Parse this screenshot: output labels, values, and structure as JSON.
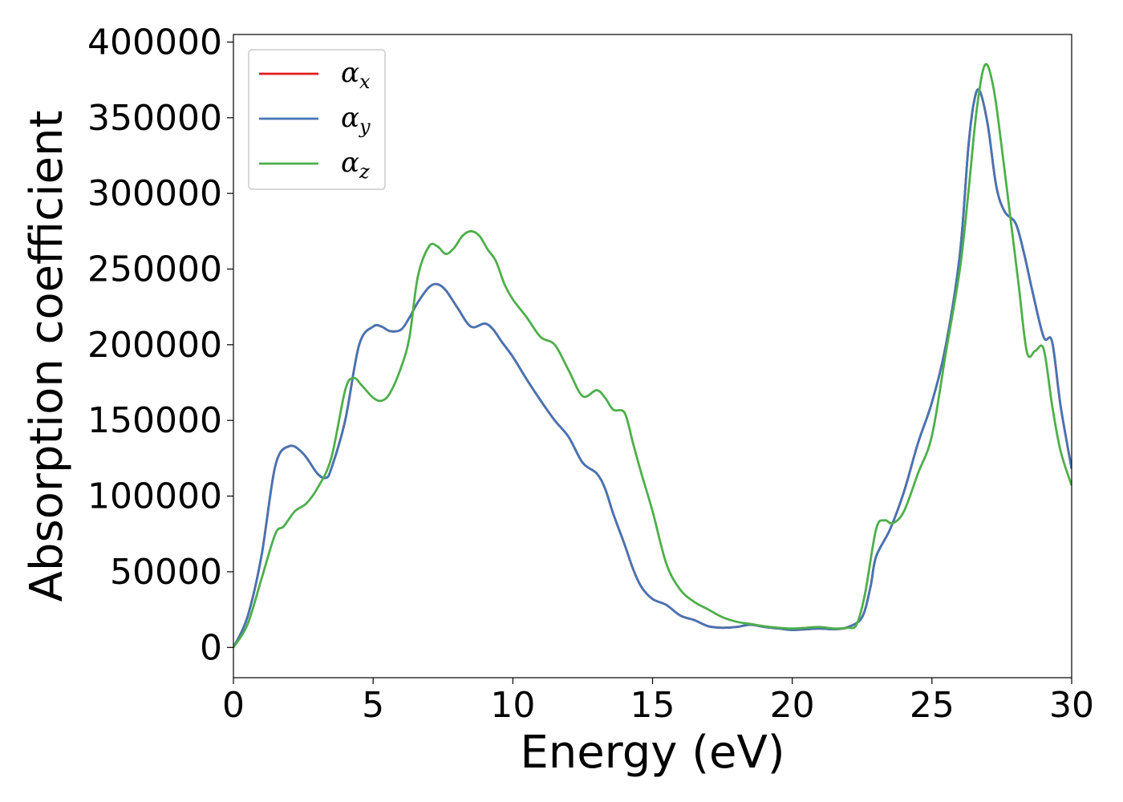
{
  "chart_data": {
    "type": "line",
    "title": "",
    "xlabel": "Energy (eV)",
    "ylabel": "Absorption coefficient",
    "xlim": [
      0,
      30
    ],
    "ylim": [
      -20000,
      405000
    ],
    "xticks": [
      0,
      5,
      10,
      15,
      20,
      25,
      30
    ],
    "yticks": [
      0,
      50000,
      100000,
      150000,
      200000,
      250000,
      300000,
      350000,
      400000
    ],
    "grid": false,
    "legend_position": "top-left",
    "series": [
      {
        "name": "α",
        "subscript": "x",
        "color": "#e41a1c",
        "x": [
          0,
          0.5,
          1,
          1.5,
          2,
          2.5,
          3,
          3.3,
          3.5,
          4,
          4.5,
          5,
          5.3,
          5.6,
          6,
          6.3,
          6.6,
          7,
          7.3,
          7.6,
          8,
          8.5,
          9,
          9.3,
          9.6,
          10,
          10.5,
          11,
          11.5,
          12,
          12.5,
          13,
          13.3,
          13.6,
          14,
          14.3,
          14.6,
          15,
          15.5,
          16,
          16.5,
          17,
          17.5,
          18,
          18.5,
          19,
          19.5,
          20,
          20.5,
          21,
          21.5,
          22,
          22.5,
          22.8,
          23,
          23.5,
          24,
          24.5,
          25,
          25.5,
          26,
          26.3,
          26.5,
          26.7,
          27,
          27.3,
          27.6,
          28,
          28.3,
          28.6,
          29,
          29.3,
          29.6,
          30
        ],
        "values": [
          0,
          20000,
          60000,
          120000,
          133000,
          128000,
          115000,
          112000,
          118000,
          150000,
          200000,
          212000,
          212000,
          209000,
          210000,
          218000,
          228000,
          238000,
          240000,
          236000,
          225000,
          212000,
          214000,
          210000,
          202000,
          192000,
          177000,
          163000,
          150000,
          139000,
          122000,
          115000,
          105000,
          88000,
          68000,
          52000,
          40000,
          32000,
          28000,
          21000,
          18000,
          14000,
          13000,
          13500,
          15000,
          13500,
          12500,
          11500,
          12000,
          12500,
          12000,
          13500,
          20000,
          40000,
          60000,
          78000,
          103000,
          135000,
          162000,
          200000,
          260000,
          330000,
          360000,
          368000,
          345000,
          305000,
          288000,
          280000,
          260000,
          235000,
          205000,
          202000,
          160000,
          118000
        ]
      },
      {
        "name": "α",
        "subscript": "y",
        "color": "#4575b4",
        "x": [
          0,
          0.5,
          1,
          1.5,
          2,
          2.5,
          3,
          3.3,
          3.5,
          4,
          4.5,
          5,
          5.3,
          5.6,
          6,
          6.3,
          6.6,
          7,
          7.3,
          7.6,
          8,
          8.5,
          9,
          9.3,
          9.6,
          10,
          10.5,
          11,
          11.5,
          12,
          12.5,
          13,
          13.3,
          13.6,
          14,
          14.3,
          14.6,
          15,
          15.5,
          16,
          16.5,
          17,
          17.5,
          18,
          18.5,
          19,
          19.5,
          20,
          20.5,
          21,
          21.5,
          22,
          22.5,
          22.8,
          23,
          23.5,
          24,
          24.5,
          25,
          25.5,
          26,
          26.3,
          26.5,
          26.7,
          27,
          27.3,
          27.6,
          28,
          28.3,
          28.6,
          29,
          29.3,
          29.6,
          30
        ],
        "values": [
          0,
          20000,
          60000,
          120000,
          133000,
          128000,
          115000,
          112000,
          118000,
          150000,
          200000,
          212000,
          212000,
          209000,
          210000,
          218000,
          228000,
          238000,
          240000,
          236000,
          225000,
          212000,
          214000,
          210000,
          202000,
          192000,
          177000,
          163000,
          150000,
          139000,
          122000,
          115000,
          105000,
          88000,
          68000,
          52000,
          40000,
          32000,
          28000,
          21000,
          18000,
          14000,
          13000,
          13500,
          15000,
          13500,
          12500,
          11500,
          12000,
          12500,
          12000,
          13500,
          20000,
          40000,
          60000,
          78000,
          103000,
          135000,
          162000,
          200000,
          260000,
          330000,
          360000,
          368000,
          345000,
          305000,
          288000,
          280000,
          260000,
          235000,
          205000,
          202000,
          160000,
          118000
        ]
      },
      {
        "name": "α",
        "subscript": "z",
        "color": "#4daf4a",
        "x": [
          0,
          0.5,
          1,
          1.5,
          1.8,
          2.2,
          2.6,
          3,
          3.5,
          4,
          4.3,
          4.6,
          5,
          5.3,
          5.6,
          6,
          6.3,
          6.6,
          7,
          7.3,
          7.6,
          7.9,
          8.2,
          8.5,
          8.8,
          9.1,
          9.4,
          9.7,
          10,
          10.5,
          11,
          11.5,
          12,
          12.5,
          13,
          13.3,
          13.6,
          14,
          14.3,
          14.6,
          15,
          15.5,
          16,
          16.5,
          17,
          17.5,
          18,
          18.5,
          19,
          19.5,
          20,
          20.5,
          21,
          21.5,
          22,
          22.3,
          22.6,
          23,
          23.3,
          23.6,
          24,
          24.5,
          25,
          25.5,
          26,
          26.3,
          26.6,
          26.9,
          27.2,
          27.5,
          27.8,
          28.1,
          28.4,
          28.7,
          29,
          29.3,
          29.6,
          30
        ],
        "values": [
          0,
          15000,
          45000,
          75000,
          80000,
          90000,
          95000,
          105000,
          125000,
          170000,
          178000,
          173000,
          165000,
          163000,
          168000,
          185000,
          205000,
          245000,
          265000,
          265000,
          260000,
          264000,
          272000,
          275000,
          272000,
          263000,
          255000,
          240000,
          230000,
          218000,
          205000,
          200000,
          183000,
          166000,
          170000,
          165000,
          157000,
          155000,
          135000,
          115000,
          90000,
          55000,
          38000,
          30000,
          25000,
          20000,
          17000,
          15500,
          14000,
          13000,
          12500,
          13000,
          13500,
          12500,
          13000,
          15000,
          35000,
          78000,
          84000,
          82000,
          90000,
          115000,
          140000,
          195000,
          250000,
          300000,
          355000,
          385000,
          370000,
          330000,
          285000,
          240000,
          195000,
          196000,
          197000,
          160000,
          130000,
          107000
        ]
      }
    ]
  }
}
